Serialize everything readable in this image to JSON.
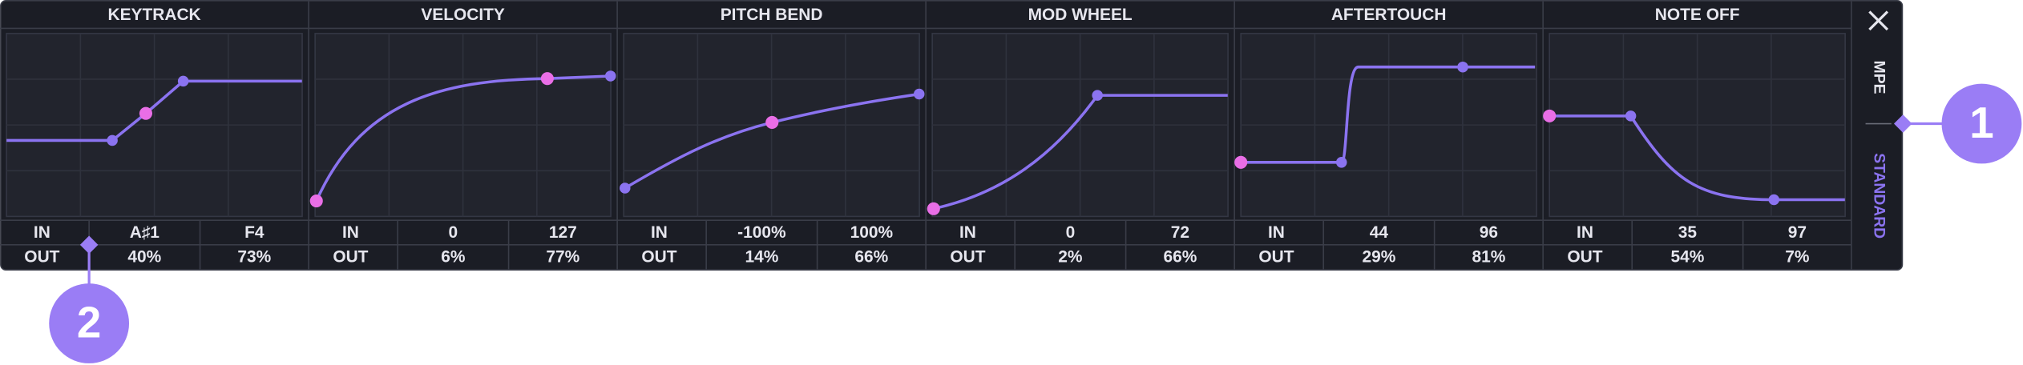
{
  "panels": [
    {
      "title": "KEYTRACK",
      "in_label": "IN",
      "out_label": "OUT",
      "in": [
        "A♯1",
        "F4"
      ],
      "out": [
        "40%",
        "73%"
      ]
    },
    {
      "title": "VELOCITY",
      "in_label": "IN",
      "out_label": "OUT",
      "in": [
        "0",
        "127"
      ],
      "out": [
        "6%",
        "77%"
      ]
    },
    {
      "title": "PITCH BEND",
      "in_label": "IN",
      "out_label": "OUT",
      "in": [
        "-100%",
        "100%"
      ],
      "out": [
        "14%",
        "66%"
      ]
    },
    {
      "title": "MOD WHEEL",
      "in_label": "IN",
      "out_label": "OUT",
      "in": [
        "0",
        "72"
      ],
      "out": [
        "2%",
        "66%"
      ]
    },
    {
      "title": "AFTERTOUCH",
      "in_label": "IN",
      "out_label": "OUT",
      "in": [
        "44",
        "96"
      ],
      "out": [
        "29%",
        "81%"
      ]
    },
    {
      "title": "NOTE OFF",
      "in_label": "IN",
      "out_label": "OUT",
      "in": [
        "35",
        "97"
      ],
      "out": [
        "54%",
        "7%"
      ]
    }
  ],
  "side": {
    "mpe": "MPE",
    "standard": "STANDARD"
  },
  "callouts": [
    "1",
    "2"
  ]
}
